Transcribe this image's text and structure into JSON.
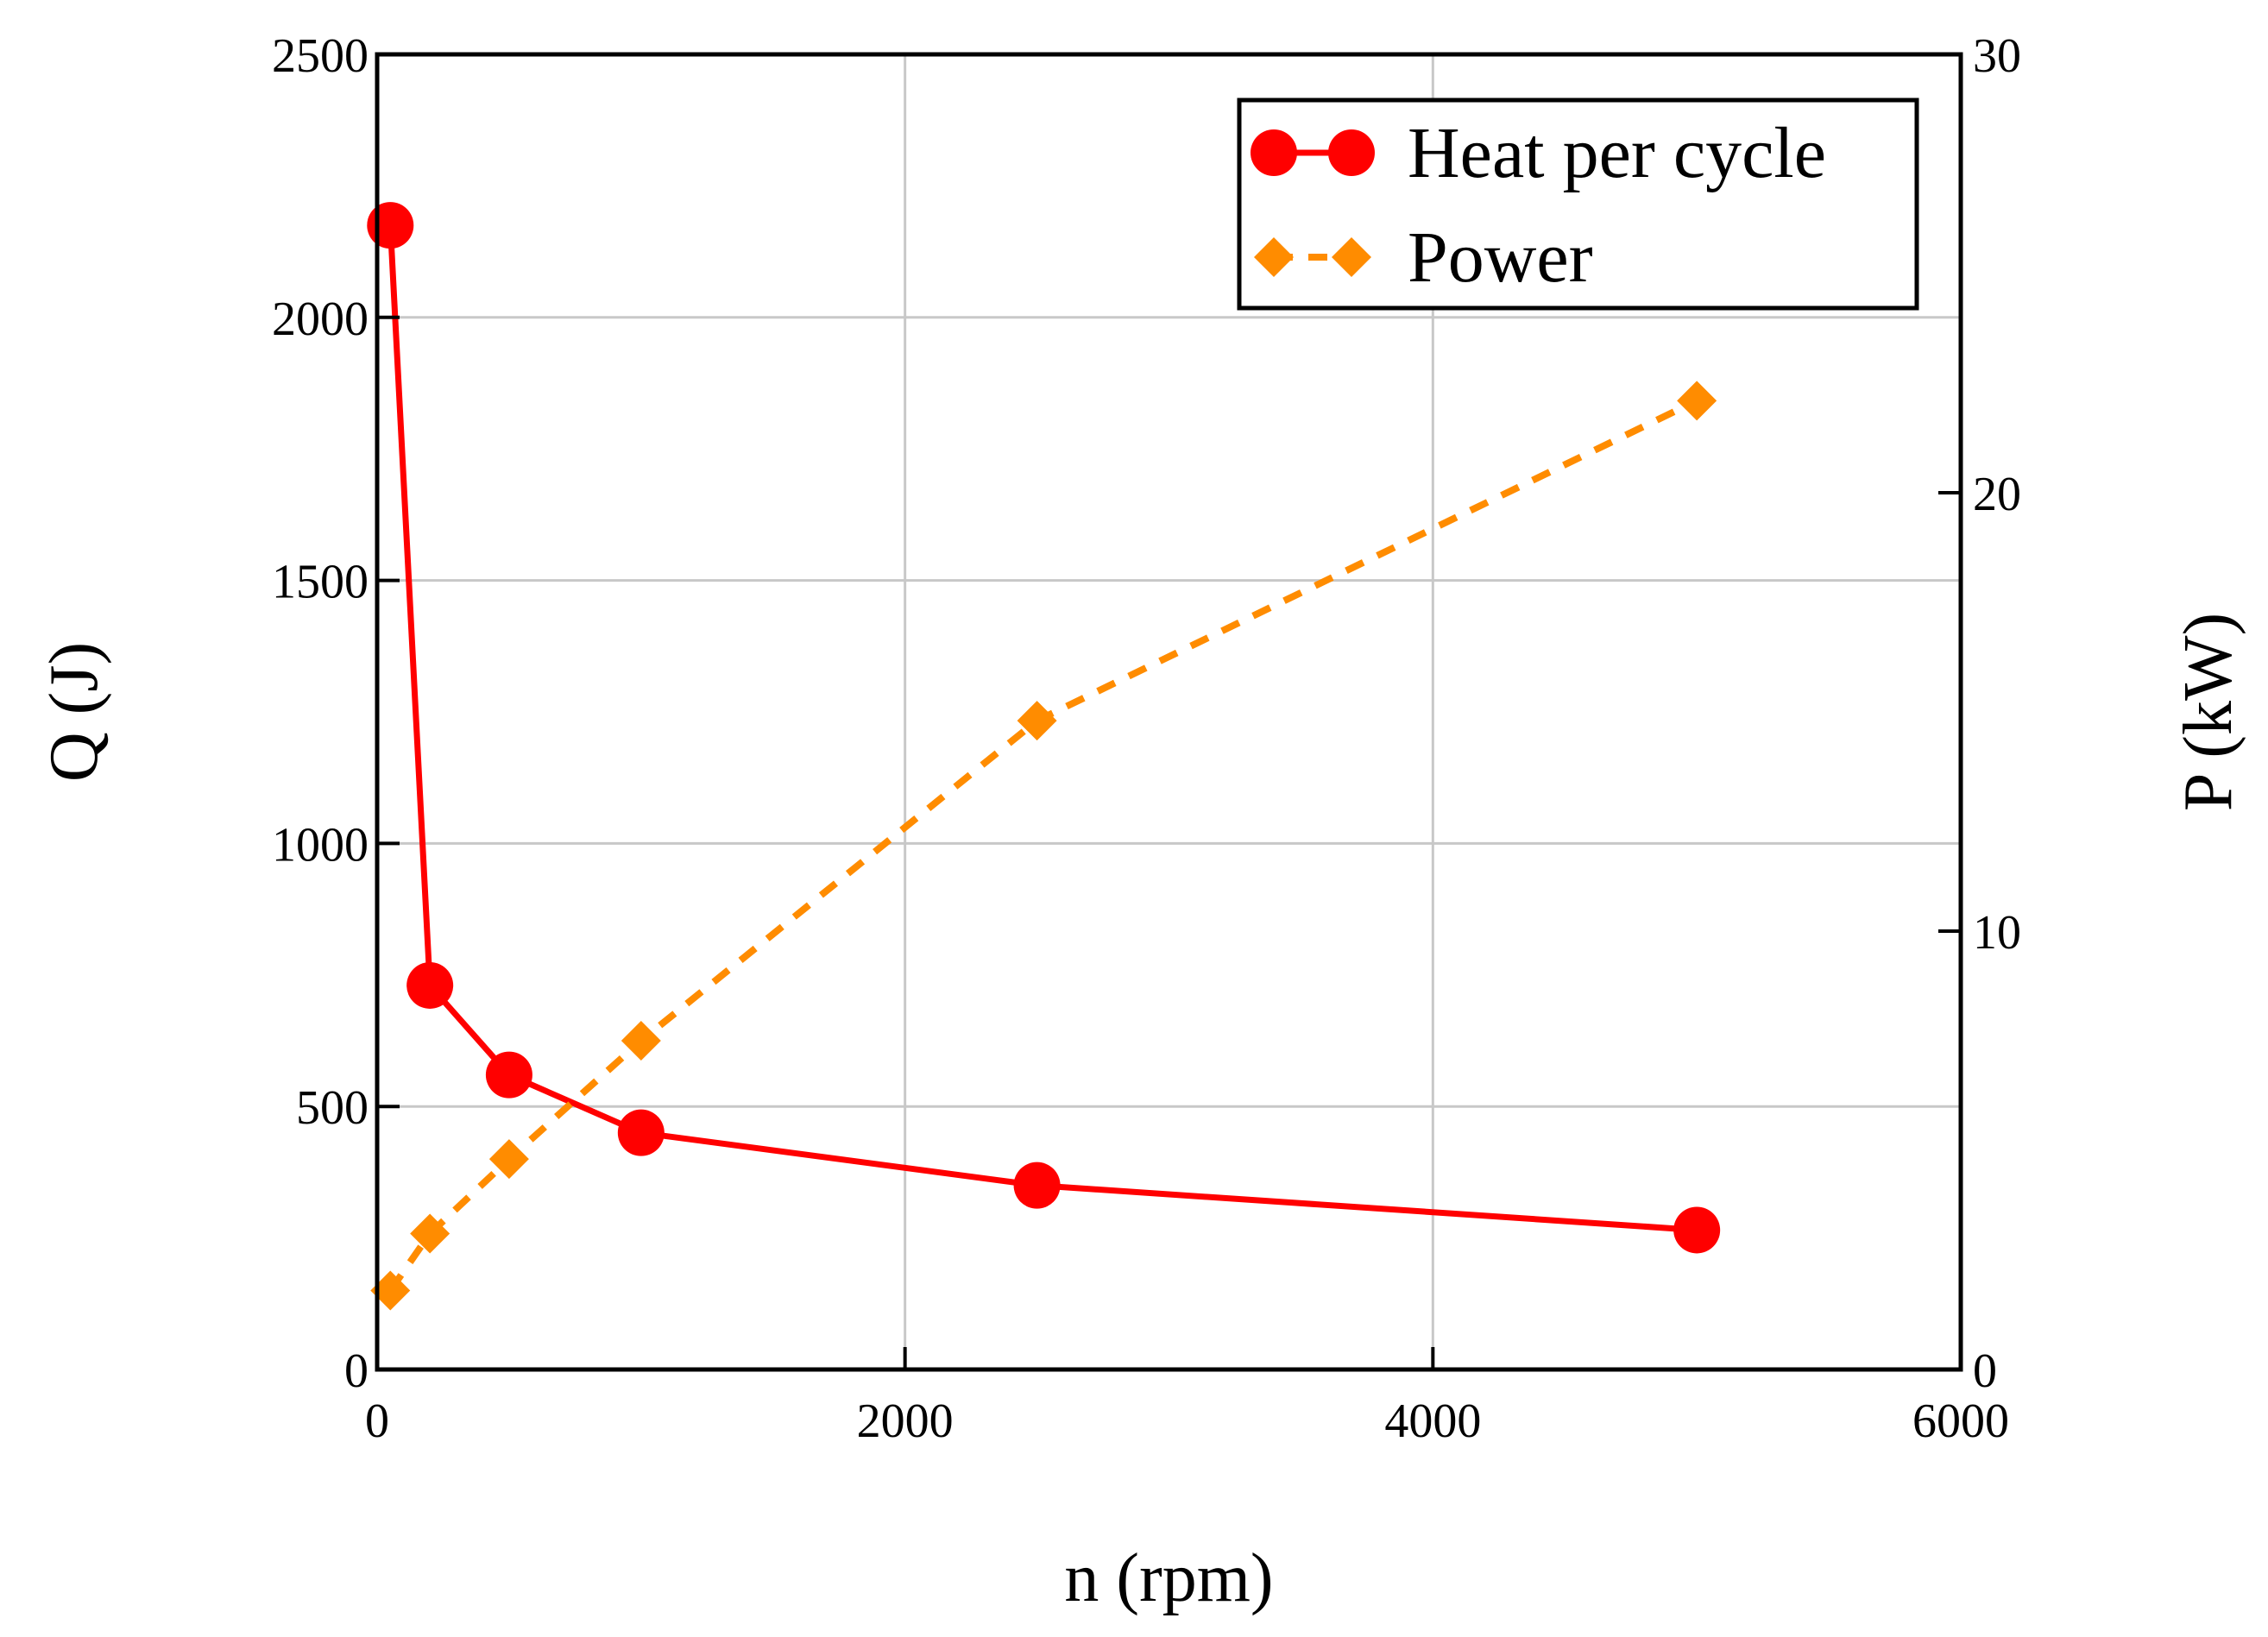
{
  "chart_data": {
    "type": "line",
    "x": [
      50,
      200,
      500,
      1000,
      2500,
      5000
    ],
    "series": [
      {
        "name": "Heat per cycle",
        "axis": "left",
        "values": [
          2175,
          730,
          560,
          450,
          350,
          265
        ],
        "color": "#ff0000",
        "style": "solid",
        "marker": "circle"
      },
      {
        "name": "Power",
        "axis": "right",
        "values": [
          1.8,
          3.1,
          4.8,
          7.5,
          14.8,
          22.1
        ],
        "color": "#ff8c00",
        "style": "dashed",
        "marker": "diamond"
      }
    ],
    "xlabel": "n (rpm)",
    "ylabel_left": "Q (J)",
    "ylabel_right": "P (kW)",
    "xlim": [
      0,
      6000
    ],
    "ylim_left": [
      0,
      2500
    ],
    "ylim_right": [
      0,
      30
    ],
    "x_ticks": [
      0,
      2000,
      4000,
      6000
    ],
    "y_ticks_left": [
      0,
      500,
      1000,
      1500,
      2000,
      2500
    ],
    "y_ticks_right": [
      0,
      10,
      20,
      30
    ],
    "grid": true,
    "legend_position": "top-right"
  }
}
